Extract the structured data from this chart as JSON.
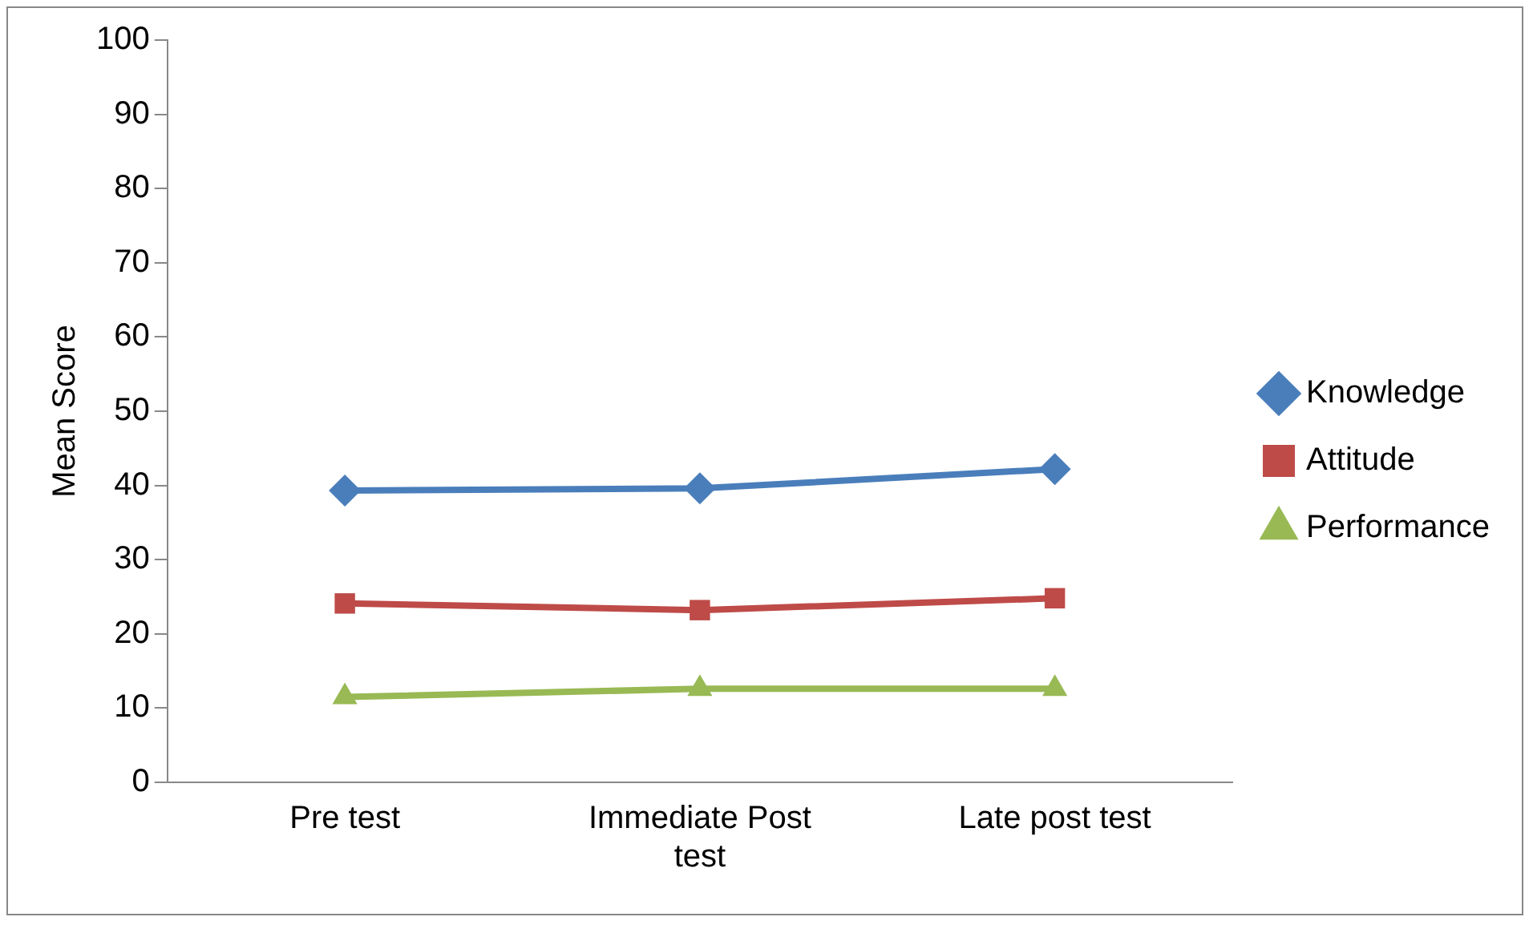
{
  "chart_data": {
    "type": "line",
    "ylabel": "Mean Score",
    "categories": [
      "Pre test",
      "Immediate Post test",
      "Late post test"
    ],
    "series": [
      {
        "name": "Knowledge",
        "color": "#4a7ebb",
        "marker": "diamond",
        "values": [
          39.3,
          39.6,
          42.2
        ]
      },
      {
        "name": "Attitude",
        "color": "#be4b48",
        "marker": "square",
        "values": [
          24.1,
          23.2,
          24.8
        ]
      },
      {
        "name": "Performance",
        "color": "#98b954",
        "marker": "triangle",
        "values": [
          11.5,
          12.6,
          12.6
        ]
      }
    ],
    "ylim": [
      0,
      100
    ],
    "yticks": [
      0,
      10,
      20,
      30,
      40,
      50,
      60,
      70,
      80,
      90,
      100
    ],
    "grid": false,
    "legend": "right",
    "line_style": "solid"
  }
}
